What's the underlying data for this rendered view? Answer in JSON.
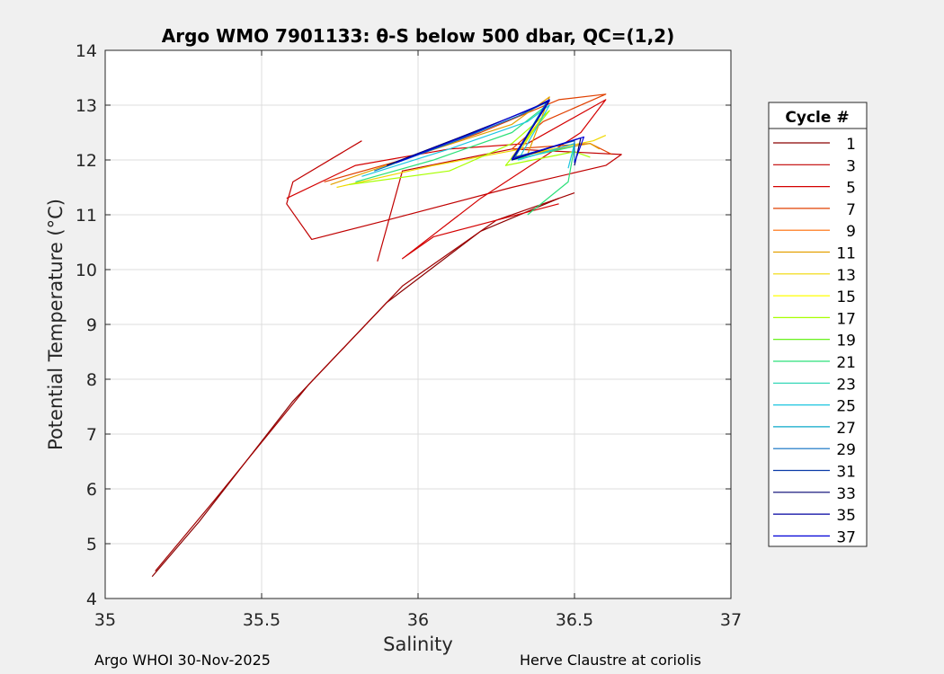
{
  "footer": {
    "left": "Argo WHOI 30-Nov-2025",
    "right": "Herve Claustre at coriolis"
  },
  "chart_data": {
    "type": "line",
    "title": "Argo WMO 7901133: θ-S below 500 dbar,  QC=(1,2)",
    "xlabel": "Salinity",
    "ylabel": "Potential Temperature (°C)",
    "xlim": [
      35,
      37
    ],
    "ylim": [
      4,
      14
    ],
    "xticks": [
      "35",
      "35.5",
      "36",
      "36.5",
      "37"
    ],
    "yticks": [
      "4",
      "5",
      "6",
      "7",
      "8",
      "9",
      "10",
      "11",
      "12",
      "13",
      "14"
    ],
    "grid": true,
    "legend": {
      "title": "Cycle #",
      "placement": "right-outside",
      "entries": [
        "1",
        "3",
        "5",
        "7",
        "9",
        "11",
        "13",
        "15",
        "17",
        "19",
        "21",
        "23",
        "25",
        "27",
        "29",
        "31",
        "33",
        "35",
        "37"
      ],
      "colors": [
        "#8b0000",
        "#c00000",
        "#d40000",
        "#e04000",
        "#ff6a00",
        "#e3a000",
        "#f0d800",
        "#ffff00",
        "#a8ff00",
        "#56f000",
        "#2ce07a",
        "#1ed2b0",
        "#1cc6e0",
        "#0aa8c8",
        "#0a6ec0",
        "#0a3aa8",
        "#000070",
        "#0000a0",
        "#0000d8"
      ]
    },
    "series": [
      {
        "color": "#8b0000",
        "x": [
          35.15,
          35.3,
          35.6,
          35.9,
          36.2,
          36.45
        ],
        "y": [
          4.4,
          5.4,
          7.6,
          9.4,
          10.7,
          11.3
        ]
      },
      {
        "color": "#a00000",
        "x": [
          35.16,
          35.35,
          35.65,
          35.95,
          36.25,
          36.5
        ],
        "y": [
          4.5,
          5.8,
          7.9,
          9.7,
          10.9,
          11.4
        ]
      },
      {
        "color": "#c00000",
        "x": [
          35.82,
          35.6,
          35.58,
          35.66,
          35.9,
          36.3,
          36.6,
          36.65,
          36.3,
          35.95,
          35.87
        ],
        "y": [
          12.35,
          11.6,
          11.2,
          10.55,
          10.9,
          11.5,
          11.9,
          12.1,
          12.2,
          11.8,
          10.15
        ]
      },
      {
        "color": "#d40000",
        "x": [
          35.58,
          35.8,
          36.1,
          36.35,
          36.6,
          36.52,
          36.2,
          35.95,
          36.05,
          36.45
        ],
        "y": [
          11.3,
          11.9,
          12.2,
          12.3,
          13.1,
          12.5,
          11.3,
          10.2,
          10.6,
          11.2
        ]
      },
      {
        "color": "#e04000",
        "x": [
          35.7,
          35.95,
          36.2,
          36.45,
          36.6,
          36.4,
          36.3,
          36.55,
          36.62
        ],
        "y": [
          11.6,
          12.0,
          12.5,
          13.1,
          13.2,
          12.7,
          12.2,
          12.3,
          12.1
        ]
      },
      {
        "color": "#e3a000",
        "x": [
          35.72,
          36.0,
          36.3,
          36.42,
          36.35,
          36.55,
          36.58
        ],
        "y": [
          11.55,
          12.1,
          12.65,
          13.15,
          12.1,
          12.3,
          12.2
        ]
      },
      {
        "color": "#f0d800",
        "x": [
          35.74,
          36.05,
          36.33,
          36.4,
          36.3,
          36.56,
          36.6
        ],
        "y": [
          11.5,
          11.9,
          12.2,
          12.8,
          12.05,
          12.35,
          12.45
        ]
      },
      {
        "color": "#a8ff00",
        "x": [
          35.78,
          36.1,
          36.3,
          36.42,
          36.28,
          36.5,
          36.55
        ],
        "y": [
          11.55,
          11.8,
          12.3,
          12.9,
          11.9,
          12.15,
          12.05
        ]
      },
      {
        "color": "#2ce07a",
        "x": [
          35.8,
          36.05,
          36.3,
          36.4,
          36.3,
          36.5,
          36.48,
          36.35
        ],
        "y": [
          11.6,
          12.0,
          12.5,
          12.95,
          12.0,
          12.25,
          11.6,
          11.0
        ]
      },
      {
        "color": "#1cc6e0",
        "x": [
          35.82,
          36.1,
          36.35,
          36.42,
          36.32,
          36.5,
          36.48
        ],
        "y": [
          11.7,
          12.2,
          12.7,
          13.0,
          12.0,
          12.3,
          11.85
        ]
      },
      {
        "color": "#0a6ec0",
        "x": [
          35.86,
          36.1,
          36.32,
          36.41,
          36.31,
          36.5,
          36.5
        ],
        "y": [
          11.8,
          12.3,
          12.8,
          13.05,
          12.05,
          12.35,
          11.95
        ]
      },
      {
        "color": "#000070",
        "x": [
          35.9,
          36.15,
          36.35,
          36.42,
          36.3,
          36.52,
          36.5
        ],
        "y": [
          11.9,
          12.45,
          12.9,
          13.08,
          12.0,
          12.4,
          11.9
        ]
      },
      {
        "color": "#0000d8",
        "x": [
          35.93,
          36.18,
          36.38,
          36.42,
          36.3,
          36.53,
          36.5
        ],
        "y": [
          11.95,
          12.5,
          12.98,
          13.1,
          12.02,
          12.42,
          11.95
        ]
      }
    ]
  }
}
